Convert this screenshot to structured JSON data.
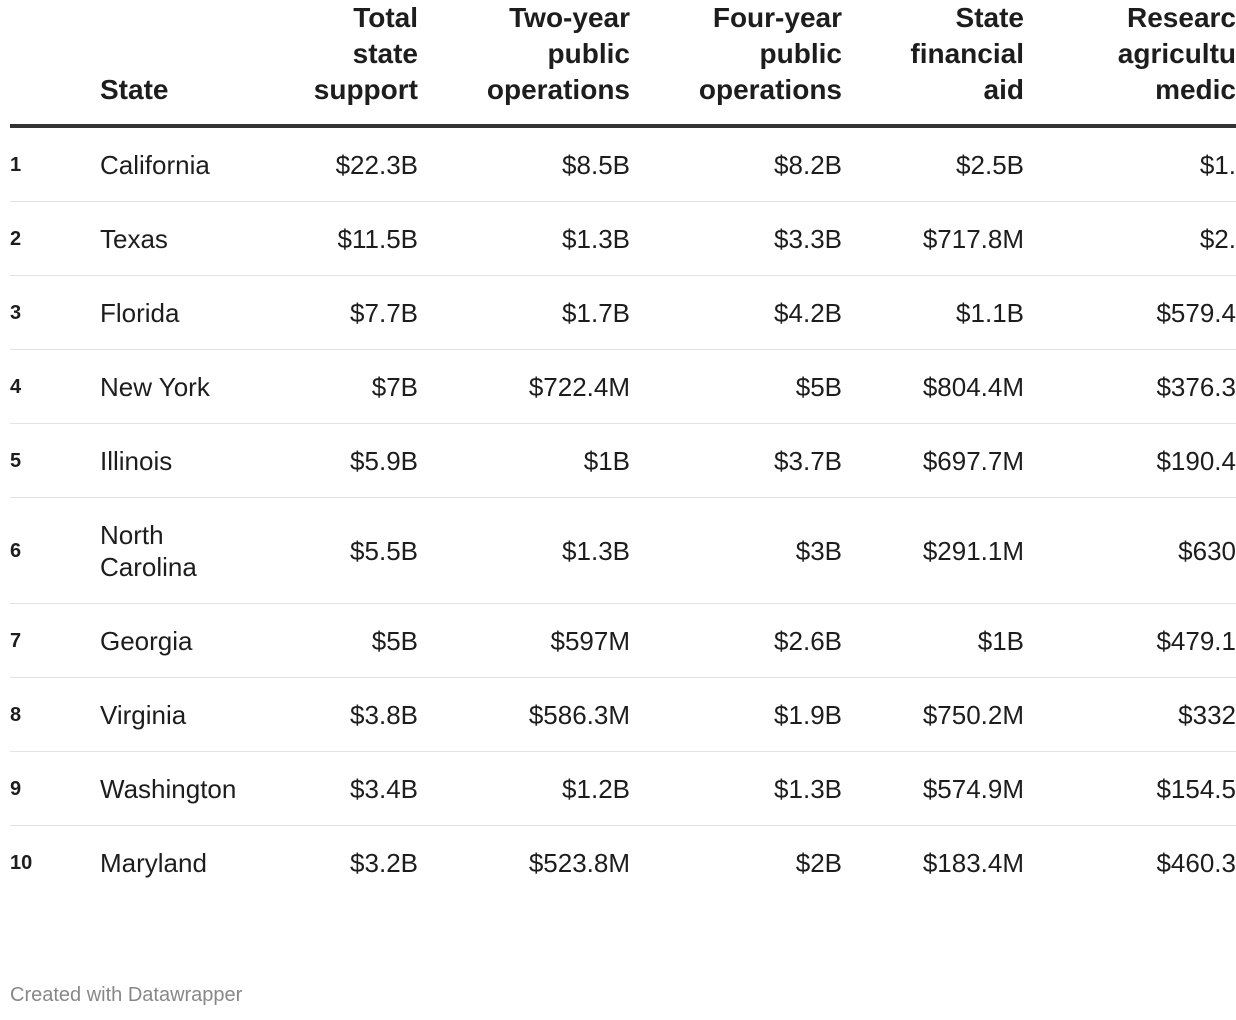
{
  "table": {
    "columns": [
      [],
      [
        "State"
      ],
      [
        "Total",
        "state",
        "support"
      ],
      [
        "Two-year",
        "public",
        "operations"
      ],
      [
        "Four-year",
        "public",
        "operations"
      ],
      [
        "State",
        "financial",
        "aid"
      ],
      [
        "Researc",
        "agricultu",
        "medic"
      ]
    ],
    "rows": [
      [
        "1",
        "California",
        "$22.3B",
        "$8.5B",
        "$8.2B",
        "$2.5B",
        "$1."
      ],
      [
        "2",
        "Texas",
        "$11.5B",
        "$1.3B",
        "$3.3B",
        "$717.8M",
        "$2."
      ],
      [
        "3",
        "Florida",
        "$7.7B",
        "$1.7B",
        "$4.2B",
        "$1.1B",
        "$579.4"
      ],
      [
        "4",
        "New York",
        "$7B",
        "$722.4M",
        "$5B",
        "$804.4M",
        "$376.3"
      ],
      [
        "5",
        "Illinois",
        "$5.9B",
        "$1B",
        "$3.7B",
        "$697.7M",
        "$190.4"
      ],
      [
        "6",
        "North Carolina",
        "$5.5B",
        "$1.3B",
        "$3B",
        "$291.1M",
        "$630"
      ],
      [
        "7",
        "Georgia",
        "$5B",
        "$597M",
        "$2.6B",
        "$1B",
        "$479.1"
      ],
      [
        "8",
        "Virginia",
        "$3.8B",
        "$586.3M",
        "$1.9B",
        "$750.2M",
        "$332"
      ],
      [
        "9",
        "Washington",
        "$3.4B",
        "$1.2B",
        "$1.3B",
        "$574.9M",
        "$154.5"
      ],
      [
        "10",
        "Maryland",
        "$3.2B",
        "$523.8M",
        "$2B",
        "$183.4M",
        "$460.3"
      ]
    ]
  },
  "footer": "Created with Datawrapper"
}
